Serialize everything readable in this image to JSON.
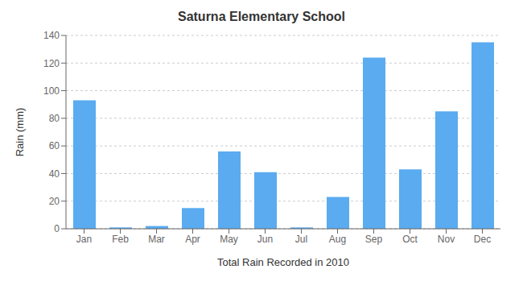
{
  "chart_data": {
    "type": "bar",
    "title": "Saturna Elementary School",
    "xlabel": "Total Rain Recorded in 2010",
    "ylabel": "Rain (mm)",
    "categories": [
      "Jan",
      "Feb",
      "Mar",
      "Apr",
      "May",
      "Jun",
      "Jul",
      "Aug",
      "Sep",
      "Oct",
      "Nov",
      "Dec"
    ],
    "values": [
      93,
      1,
      2,
      15,
      56,
      41,
      1,
      23,
      124,
      43,
      85,
      135
    ],
    "color": "#5aabf0",
    "ylim": [
      0,
      140
    ],
    "yticks": [
      0,
      20,
      40,
      60,
      80,
      100,
      120,
      140
    ],
    "grid": true
  }
}
